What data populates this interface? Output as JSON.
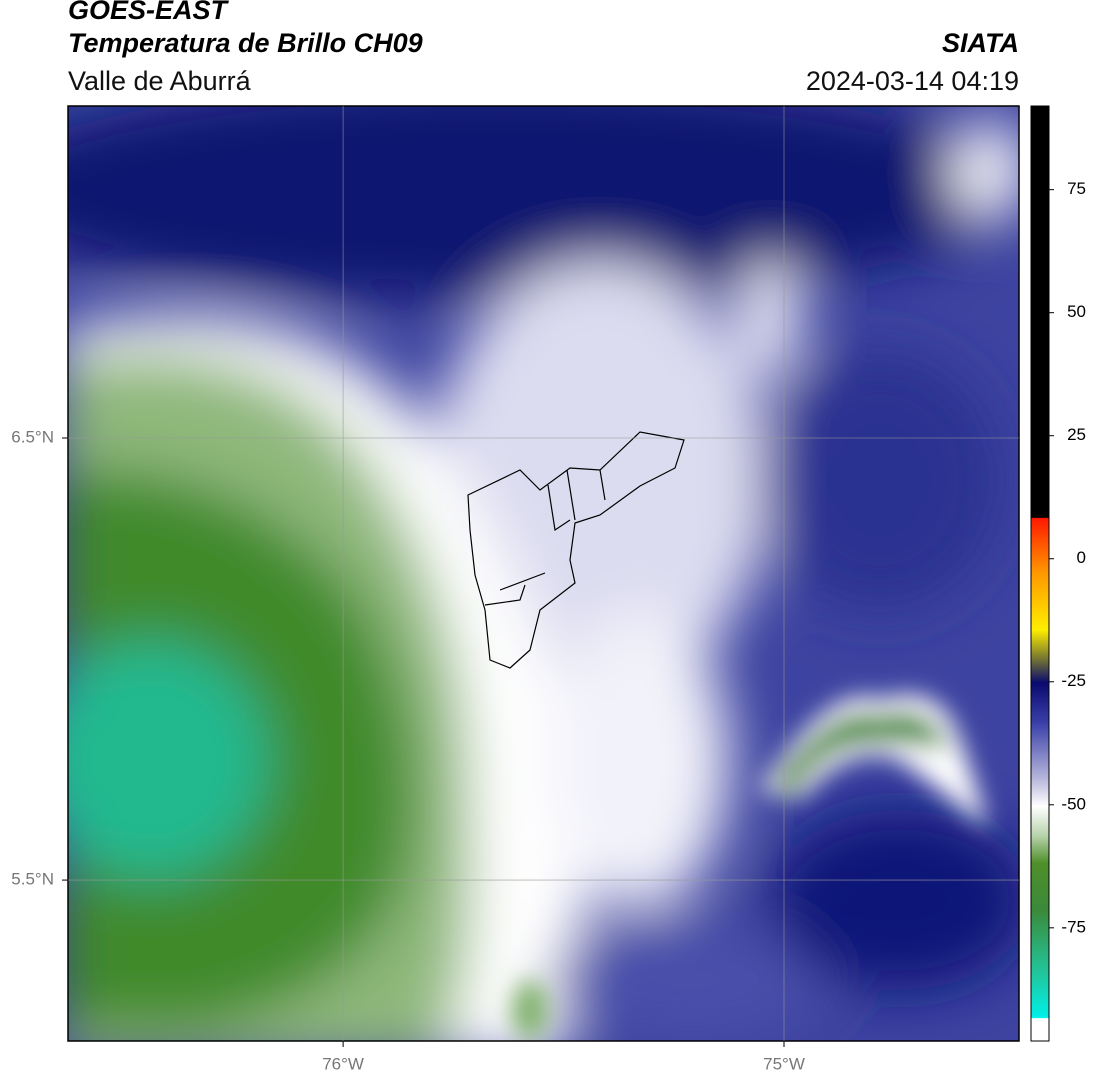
{
  "header": {
    "title": "GOES-EAST",
    "subtitle": "Temperatura de Brillo CH09",
    "region": "Valle de Aburrá",
    "source": "SIATA",
    "datetime": "2024-03-14 04:19"
  },
  "map": {
    "xlim": [
      -76.624,
      -74.467
    ],
    "ylim": [
      5.136,
      7.251
    ],
    "xticks": [
      {
        "value": -76,
        "label": "76°W"
      },
      {
        "value": -75,
        "label": "75°W"
      }
    ],
    "yticks": [
      {
        "value": 6.5,
        "label": "6.5°N"
      },
      {
        "value": 5.5,
        "label": "5.5°N"
      }
    ],
    "grid": true
  },
  "colorbar": {
    "lim": [
      -98,
      92
    ],
    "ticks": [
      75,
      50,
      25,
      0,
      -25,
      -50,
      -75
    ]
  }
}
